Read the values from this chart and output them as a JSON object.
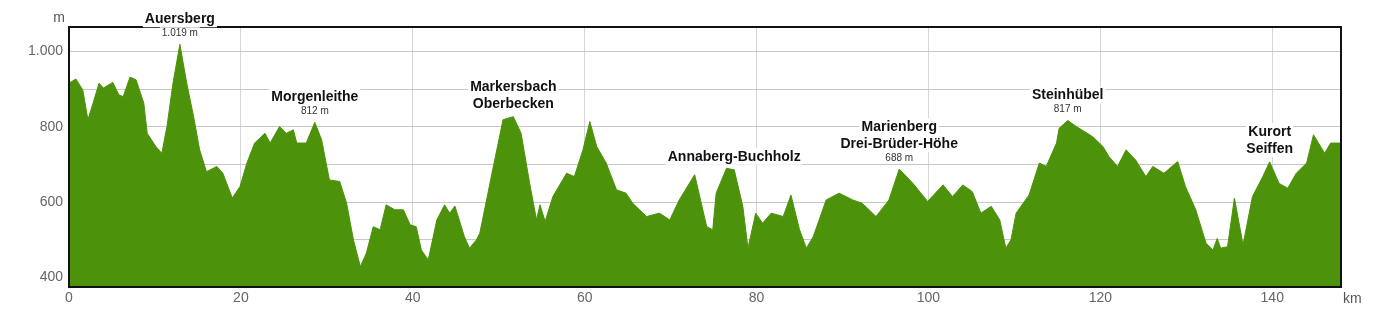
{
  "chart_data": {
    "type": "area",
    "xlabel": "km",
    "ylabel": "m",
    "color": "#4c920a",
    "grid": true,
    "xlim": [
      0,
      148
    ],
    "ylim": [
      375,
      1065
    ],
    "xticks": [
      0,
      20,
      40,
      60,
      80,
      100,
      120,
      140
    ],
    "yticks": [
      400,
      {
        "value": 500,
        "label": null
      },
      600,
      {
        "value": 700,
        "label": null
      },
      800,
      {
        "value": 900,
        "label": null
      },
      {
        "value": 1000,
        "label": "1.000"
      }
    ],
    "x": [
      0,
      0.8,
      1.6,
      2.2,
      2.8,
      3.5,
      4.0,
      5.1,
      5.8,
      6.3,
      7.1,
      7.8,
      8.7,
      9.1,
      10.1,
      10.8,
      11.4,
      12.1,
      12.9,
      13.7,
      14.5,
      15.2,
      16.0,
      17.2,
      17.9,
      19.0,
      19.9,
      20.7,
      21.6,
      22.8,
      23.4,
      24.5,
      25.3,
      26.1,
      26.5,
      27.6,
      28.6,
      29.4,
      30.3,
      31.5,
      32.3,
      33.1,
      33.9,
      34.6,
      35.4,
      36.2,
      36.9,
      37.9,
      38.9,
      39.7,
      40.4,
      41.0,
      41.8,
      42.8,
      43.7,
      44.3,
      44.9,
      46.0,
      46.6,
      47.4,
      47.8,
      49.3,
      50.5,
      51.7,
      52.6,
      53.6,
      54.4,
      54.8,
      55.4,
      56.3,
      57.9,
      58.8,
      59.8,
      60.6,
      61.4,
      62.5,
      63.7,
      64.8,
      65.6,
      67.2,
      68.7,
      69.9,
      71.0,
      72.8,
      74.2,
      74.9,
      75.3,
      76.5,
      77.4,
      78.4,
      79.0,
      79.9,
      80.7,
      81.7,
      83.1,
      84.0,
      85.0,
      85.8,
      86.6,
      88.1,
      89.6,
      91.2,
      92.3,
      93.9,
      95.4,
      96.6,
      98.2,
      99.9,
      101.7,
      102.8,
      104.0,
      105.1,
      106.1,
      107.3,
      108.3,
      109.0,
      109.6,
      110.2,
      111.7,
      112.9,
      113.7,
      114.9,
      115.2,
      116.2,
      117.2,
      119.1,
      120.3,
      121.0,
      122.0,
      123.0,
      124.1,
      125.3,
      126.1,
      127.4,
      129.0,
      129.9,
      131.1,
      132.3,
      133.1,
      133.6,
      134.0,
      134.8,
      135.6,
      136.6,
      137.7,
      138.9,
      139.7,
      140.8,
      141.8,
      142.8,
      144.0,
      144.8,
      146.1,
      146.8,
      147.9
    ],
    "values": [
      916,
      927,
      898,
      819,
      863,
      916,
      903,
      918,
      885,
      880,
      932,
      925,
      863,
      783,
      748,
      730,
      801,
      916,
      1019,
      916,
      827,
      739,
      681,
      695,
      677,
      611,
      642,
      704,
      757,
      783,
      757,
      801,
      783,
      792,
      757,
      757,
      812,
      765,
      659,
      655,
      597,
      500,
      429,
      465,
      535,
      527,
      593,
      580,
      580,
      540,
      535,
      473,
      447,
      553,
      593,
      571,
      590,
      509,
      478,
      500,
      518,
      686,
      819,
      827,
      783,
      650,
      553,
      593,
      549,
      615,
      677,
      668,
      739,
      814,
      748,
      704,
      633,
      624,
      597,
      562,
      571,
      553,
      606,
      673,
      535,
      527,
      624,
      690,
      686,
      589,
      478,
      571,
      544,
      571,
      562,
      619,
      527,
      478,
      509,
      606,
      624,
      606,
      597,
      562,
      606,
      688,
      650,
      602,
      646,
      615,
      646,
      628,
      571,
      589,
      553,
      478,
      500,
      571,
      619,
      704,
      695,
      757,
      796,
      817,
      801,
      774,
      748,
      721,
      695,
      739,
      712,
      668,
      695,
      677,
      708,
      642,
      580,
      491,
      473,
      504,
      478,
      482,
      611,
      487,
      615,
      668,
      707,
      650,
      637,
      677,
      704,
      779,
      730,
      757,
      757
    ],
    "annotations": [
      {
        "text": "Auersberg",
        "x": 12.9,
        "y": 1019
      },
      {
        "text": "1.019 m",
        "x": 12.9,
        "y": 1019
      },
      {
        "text": "Morgenleithe",
        "x": 28.6,
        "y": 812
      },
      {
        "text": "812 m",
        "x": 28.6,
        "y": 812
      },
      {
        "text": "Markersbach\nOberbecken",
        "x": 51.7,
        "y": 827
      },
      {
        "text": "Annaberg-Buchholz",
        "x": 77.4,
        "y": 686
      },
      {
        "text": "Marienberg\nDrei-Brüder-Höhe",
        "x": 96.6,
        "y": 688
      },
      {
        "text": "688 m",
        "x": 96.6,
        "y": 688
      },
      {
        "text": "Steinhübel",
        "x": 116.2,
        "y": 817
      },
      {
        "text": "817 m",
        "x": 116.2,
        "y": 817
      },
      {
        "text": "Kurort\nSeiffen",
        "x": 139.7,
        "y": 707
      }
    ]
  }
}
